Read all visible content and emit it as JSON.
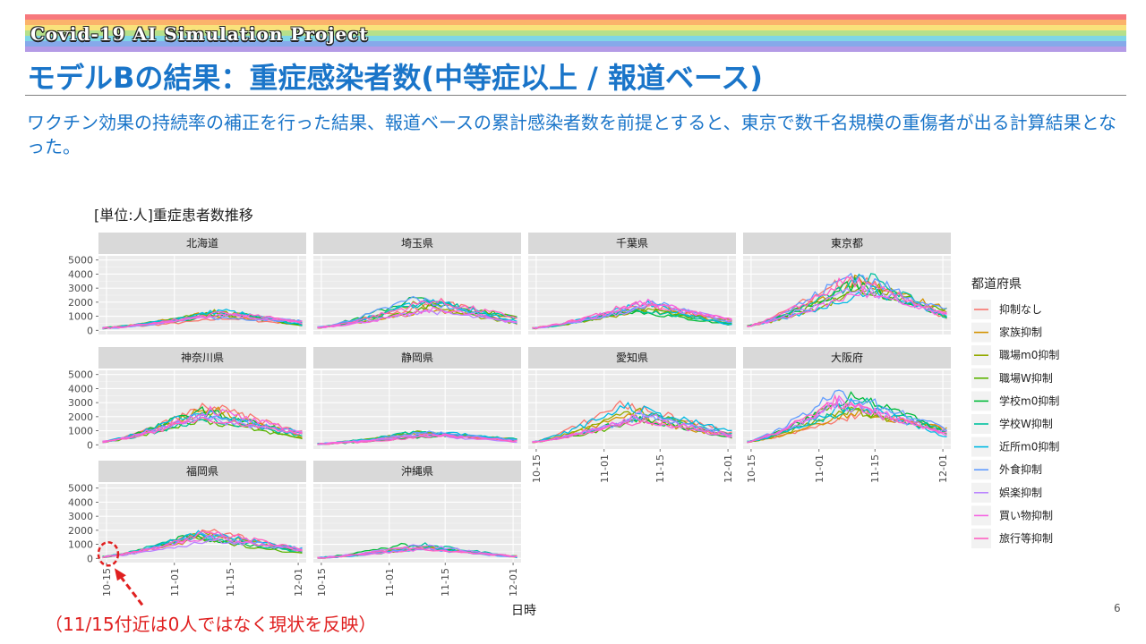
{
  "header": {
    "brand": "Covid-19 AI Simulation Project",
    "title": "モデルBの結果：重症感染者数(中等症以上 / 報道ベース)",
    "description": "ワクチン効果の持続率の補正を行った結果、報道ベースの累計感染者数を前提とすると、東京で数千名規模の重傷者が出る計算結果となった。"
  },
  "annotation": "（11/15付近は0人ではなく現状を反映）",
  "page_number": "6",
  "colors": {
    "title_blue": "#1a75c9",
    "annotation_red": "#e02020",
    "panel_bg": "#ebebeb",
    "strip_bg": "#d9d9d9"
  },
  "chart_data": {
    "type": "line",
    "title": "[単位:人]重症患者数推移",
    "xlabel": "日時",
    "ylabel": "",
    "legend_title": "都道府県",
    "legend_position": "right",
    "grid": true,
    "facet_layout": {
      "columns": 4,
      "rows": 3
    },
    "x_range": [
      "10-13",
      "12-03"
    ],
    "x_ticks": [
      "10-15",
      "11-01",
      "11-15",
      "12-01"
    ],
    "y_range": [
      -300,
      5300
    ],
    "y_ticks": [
      0,
      1000,
      2000,
      3000,
      4000,
      5000
    ],
    "series": [
      {
        "name": "抑制なし",
        "color": "#F8766D"
      },
      {
        "name": "家族抑制",
        "color": "#D39200"
      },
      {
        "name": "職場m0抑制",
        "color": "#93AA00"
      },
      {
        "name": "職場W抑制",
        "color": "#5BB300"
      },
      {
        "name": "学校m0抑制",
        "color": "#00BA38"
      },
      {
        "name": "学校W抑制",
        "color": "#00C19F"
      },
      {
        "name": "近所m0抑制",
        "color": "#00B9E3"
      },
      {
        "name": "外食抑制",
        "color": "#619CFF"
      },
      {
        "name": "娯楽抑制",
        "color": "#B983FF"
      },
      {
        "name": "買い物抑制",
        "color": "#F564E3"
      },
      {
        "name": "旅行等抑制",
        "color": "#FF61C3"
      }
    ],
    "panels": [
      {
        "name": "北海道",
        "start": 150,
        "peak": 1200,
        "peak_day": 28,
        "end": 500
      },
      {
        "name": "埼玉県",
        "start": 200,
        "peak": 1900,
        "peak_day": 28,
        "end": 700
      },
      {
        "name": "千葉県",
        "start": 150,
        "peak": 1700,
        "peak_day": 28,
        "end": 600
      },
      {
        "name": "東京都",
        "start": 300,
        "peak": 3500,
        "peak_day": 29,
        "end": 1200
      },
      {
        "name": "神奈川県",
        "start": 200,
        "peak": 2400,
        "peak_day": 26,
        "end": 700
      },
      {
        "name": "静岡県",
        "start": 50,
        "peak": 800,
        "peak_day": 28,
        "end": 300
      },
      {
        "name": "愛知県",
        "start": 200,
        "peak": 2500,
        "peak_day": 25,
        "end": 700
      },
      {
        "name": "大阪府",
        "start": 200,
        "peak": 3100,
        "peak_day": 26,
        "end": 900
      },
      {
        "name": "福岡県",
        "start": 100,
        "peak": 1700,
        "peak_day": 25,
        "end": 500
      },
      {
        "name": "沖縄県",
        "start": 30,
        "peak": 900,
        "peak_day": 25,
        "end": 100
      }
    ]
  }
}
